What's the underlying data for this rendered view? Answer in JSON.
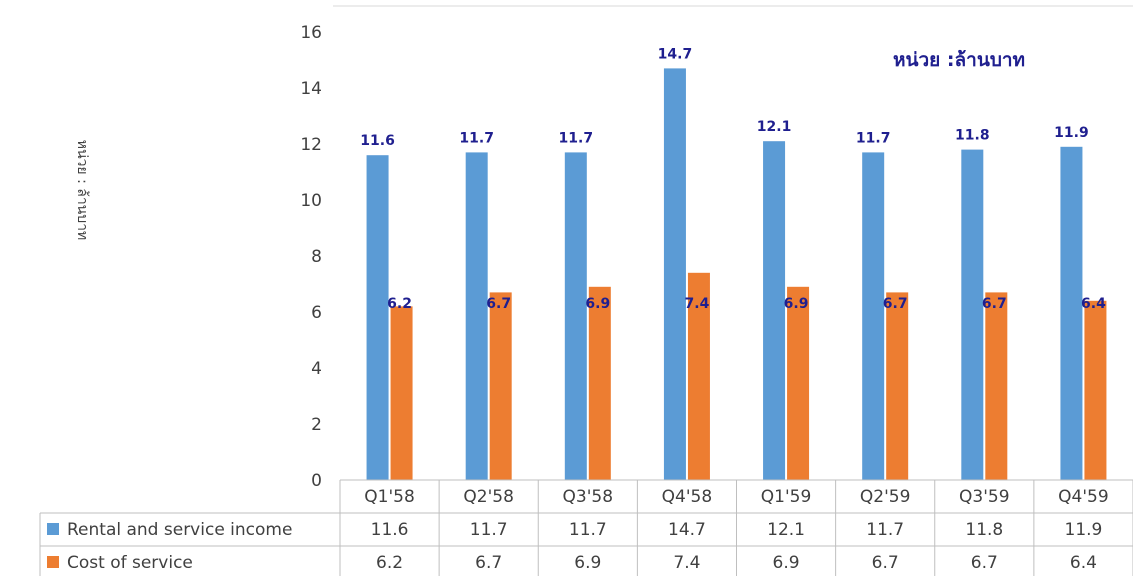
{
  "chart_data": {
    "type": "bar",
    "categories": [
      "Q1'58",
      "Q2'58",
      "Q3'58",
      "Q4'58",
      "Q1'59",
      "Q2'59",
      "Q3'59",
      "Q4'59"
    ],
    "series": [
      {
        "name": "Rental and service income",
        "values": [
          11.6,
          11.7,
          11.7,
          14.7,
          12.1,
          11.7,
          11.8,
          11.9
        ],
        "color": "#5b9bd5"
      },
      {
        "name": "Cost of service",
        "values": [
          6.2,
          6.7,
          6.9,
          7.4,
          6.9,
          6.7,
          6.7,
          6.4
        ],
        "color": "#ed7d31"
      }
    ],
    "ylabel": "หน่วย : ล้านบาท",
    "unit_note": "หน่วย :ล้านบาท",
    "ylim": [
      0,
      16
    ],
    "yticks": [
      0,
      2,
      4,
      6,
      8,
      10,
      12,
      14,
      16
    ],
    "data_labels_color": "#1f1f8f",
    "data_table": true,
    "grid": false
  }
}
